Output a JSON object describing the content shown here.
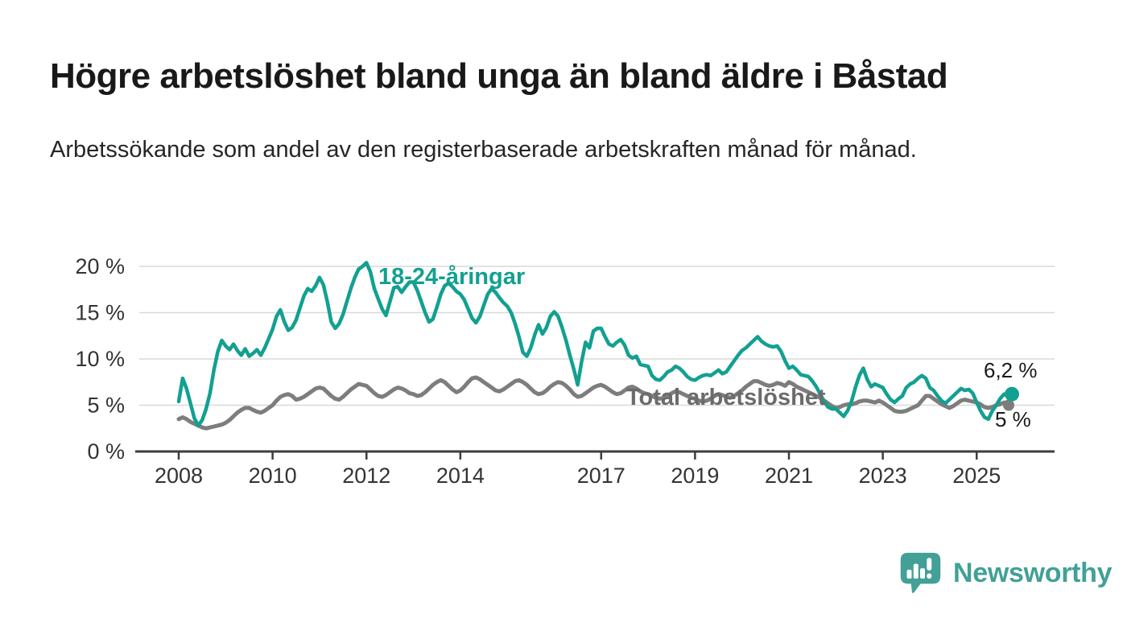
{
  "header": {
    "title": "Högre arbetslöshet bland unga än bland äldre i Båstad",
    "subtitle": "Arbetssökande som andel av den registerbaserade arbetskraften månad för månad."
  },
  "footer": {
    "logo_text": "Newsworthy",
    "logo_color": "#42a097",
    "logo_icon": "bar-chart-speech-bubble-icon"
  },
  "chart_data": {
    "type": "line",
    "x_unit": "month",
    "x_start": "2008-01",
    "x_end": "2025-10",
    "ylim": [
      0,
      21
    ],
    "grid": "horizontal",
    "legend_position": "inline-labels",
    "colors": {
      "gridline": "#d9d9d9",
      "axis": "#3d3d3d",
      "tick_text": "#333333"
    },
    "y_ticks": [
      {
        "value": 0,
        "label": "0 %"
      },
      {
        "value": 5,
        "label": "5 %"
      },
      {
        "value": 10,
        "label": "10 %"
      },
      {
        "value": 15,
        "label": "15 %"
      },
      {
        "value": 20,
        "label": "20 %"
      }
    ],
    "x_ticks": [
      {
        "year": 2008,
        "label": "2008"
      },
      {
        "year": 2010,
        "label": "2010"
      },
      {
        "year": 2012,
        "label": "2012"
      },
      {
        "year": 2014,
        "label": "2014"
      },
      {
        "year": 2017,
        "label": "2017"
      },
      {
        "year": 2019,
        "label": "2019"
      },
      {
        "year": 2021,
        "label": "2021"
      },
      {
        "year": 2023,
        "label": "2023"
      },
      {
        "year": 2025,
        "label": "2025"
      }
    ],
    "series": [
      {
        "name": "18-24-åringar",
        "color": "#12a091",
        "end_label": "6,2 %",
        "latest_value": 6.2,
        "values": [
          5.4,
          7.9,
          6.8,
          5.2,
          3.6,
          2.8,
          3.4,
          4.6,
          6.3,
          8.8,
          10.8,
          12.0,
          11.4,
          11.0,
          11.6,
          10.9,
          10.4,
          11.1,
          10.3,
          10.6,
          11.0,
          10.4,
          11.2,
          12.2,
          13.2,
          14.6,
          15.3,
          14.0,
          13.1,
          13.4,
          14.2,
          15.5,
          16.8,
          17.6,
          17.3,
          17.9,
          18.8,
          18.0,
          16.2,
          14.0,
          13.3,
          13.8,
          14.8,
          16.2,
          17.6,
          18.8,
          19.7,
          20.0,
          20.4,
          19.4,
          17.6,
          16.5,
          15.4,
          14.7,
          16.2,
          17.7,
          17.8,
          17.2,
          17.8,
          18.3,
          18.3,
          17.4,
          16.2,
          15.0,
          14.0,
          14.3,
          15.6,
          17.0,
          17.9,
          18.2,
          17.8,
          17.3,
          17.0,
          16.4,
          15.4,
          14.4,
          13.9,
          14.6,
          15.8,
          17.0,
          17.6,
          17.2,
          16.6,
          16.1,
          15.7,
          15.0,
          13.8,
          12.4,
          10.7,
          10.3,
          11.2,
          12.6,
          13.7,
          12.7,
          13.4,
          14.6,
          15.1,
          14.6,
          13.4,
          12.0,
          10.4,
          8.9,
          7.2,
          9.7,
          11.8,
          11.2,
          13.0,
          13.3,
          13.3,
          12.4,
          11.6,
          11.4,
          11.8,
          12.1,
          11.5,
          10.4,
          10.1,
          10.3,
          9.4,
          9.3,
          9.2,
          8.2,
          7.8,
          7.7,
          8.1,
          8.6,
          8.8,
          9.2,
          9.0,
          8.6,
          8.1,
          7.8,
          7.7,
          8.0,
          8.2,
          8.3,
          8.2,
          8.5,
          8.8,
          8.4,
          8.6,
          9.2,
          9.8,
          10.4,
          10.9,
          11.2,
          11.6,
          12.0,
          12.4,
          11.9,
          11.6,
          11.4,
          11.3,
          11.4,
          10.8,
          9.8,
          9.0,
          9.2,
          8.8,
          8.3,
          8.2,
          8.1,
          7.6,
          7.0,
          6.2,
          5.4,
          4.8,
          4.6,
          4.6,
          4.2,
          3.8,
          4.4,
          5.4,
          6.9,
          8.2,
          9.0,
          7.8,
          7.0,
          7.3,
          7.1,
          6.9,
          6.2,
          5.6,
          5.3,
          5.7,
          6.0,
          6.9,
          7.3,
          7.5,
          7.9,
          8.2,
          7.9,
          6.9,
          6.6,
          6.0,
          5.5,
          5.2,
          5.6,
          6.0,
          6.4,
          6.8,
          6.6,
          6.7,
          6.3,
          5.3,
          4.4,
          3.7,
          3.5,
          4.4,
          5.0,
          5.7,
          6.2,
          6.0,
          6.2
        ]
      },
      {
        "name": "Total arbetslöshet",
        "color": "#7d7d7d",
        "end_label": "5 %",
        "latest_value": 5.0,
        "values": [
          3.5,
          3.7,
          3.5,
          3.2,
          3.0,
          2.8,
          2.6,
          2.5,
          2.6,
          2.7,
          2.8,
          2.9,
          3.1,
          3.4,
          3.8,
          4.2,
          4.5,
          4.7,
          4.7,
          4.5,
          4.3,
          4.2,
          4.4,
          4.7,
          5.0,
          5.5,
          5.9,
          6.1,
          6.2,
          6.0,
          5.6,
          5.7,
          5.9,
          6.2,
          6.5,
          6.8,
          6.9,
          6.8,
          6.4,
          6.0,
          5.7,
          5.6,
          5.9,
          6.3,
          6.7,
          7.0,
          7.3,
          7.2,
          7.1,
          6.7,
          6.3,
          6.0,
          5.9,
          6.1,
          6.4,
          6.7,
          6.9,
          6.8,
          6.6,
          6.3,
          6.2,
          6.0,
          6.1,
          6.4,
          6.8,
          7.2,
          7.5,
          7.7,
          7.5,
          7.1,
          6.7,
          6.4,
          6.6,
          7.0,
          7.5,
          7.9,
          8.0,
          7.8,
          7.5,
          7.2,
          6.9,
          6.6,
          6.5,
          6.7,
          7.0,
          7.3,
          7.6,
          7.7,
          7.5,
          7.2,
          6.8,
          6.4,
          6.2,
          6.3,
          6.6,
          7.0,
          7.3,
          7.5,
          7.4,
          7.1,
          6.7,
          6.2,
          5.9,
          6.0,
          6.3,
          6.6,
          6.9,
          7.1,
          7.2,
          7.0,
          6.7,
          6.4,
          6.2,
          6.3,
          6.6,
          6.9,
          7.0,
          6.8,
          6.5,
          6.3,
          6.2,
          6.0,
          5.8,
          5.7,
          5.8,
          6.0,
          6.3,
          6.5,
          6.4,
          6.2,
          6.0,
          5.8,
          5.7,
          5.5,
          5.4,
          5.5,
          5.7,
          6.0,
          6.2,
          6.1,
          5.9,
          5.8,
          6.0,
          6.3,
          6.6,
          7.0,
          7.3,
          7.6,
          7.6,
          7.4,
          7.2,
          7.1,
          7.2,
          7.4,
          7.3,
          7.1,
          7.5,
          7.3,
          7.0,
          6.8,
          6.6,
          6.4,
          6.2,
          6.0,
          5.8,
          5.5,
          5.2,
          4.9,
          4.7,
          4.8,
          5.0,
          5.1,
          5.1,
          5.2,
          5.4,
          5.5,
          5.5,
          5.4,
          5.3,
          5.5,
          5.3,
          5.0,
          4.7,
          4.4,
          4.3,
          4.3,
          4.4,
          4.6,
          4.8,
          5.0,
          5.5,
          6.0,
          6.0,
          5.7,
          5.4,
          5.1,
          4.9,
          4.7,
          4.9,
          5.2,
          5.5,
          5.6,
          5.5,
          5.4,
          5.3,
          5.1,
          4.8,
          4.7,
          4.8,
          5.0,
          5.1,
          5.3,
          5.1,
          5.0
        ]
      }
    ]
  }
}
